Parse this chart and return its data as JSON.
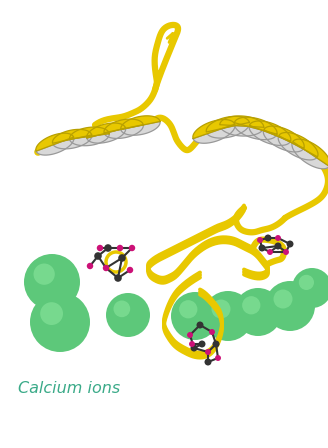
{
  "bg_color": "#ffffff",
  "helix_yellow": "#E8C800",
  "helix_outline": "#B8A000",
  "helix_back": "#d8d8d8",
  "helix_back_edge": "#999999",
  "loop_color": "#E8C800",
  "loop_lw": 4.5,
  "ca_color": "#5DC87A",
  "ca_highlight": "#8EE8A0",
  "bond_color": "#333333",
  "magenta_color": "#CC1177",
  "label_color": "#3aaa88",
  "label_text": "Calcium ions",
  "label_fontsize": 11.5,
  "fig_w": 3.28,
  "fig_h": 4.48,
  "dpi": 100
}
